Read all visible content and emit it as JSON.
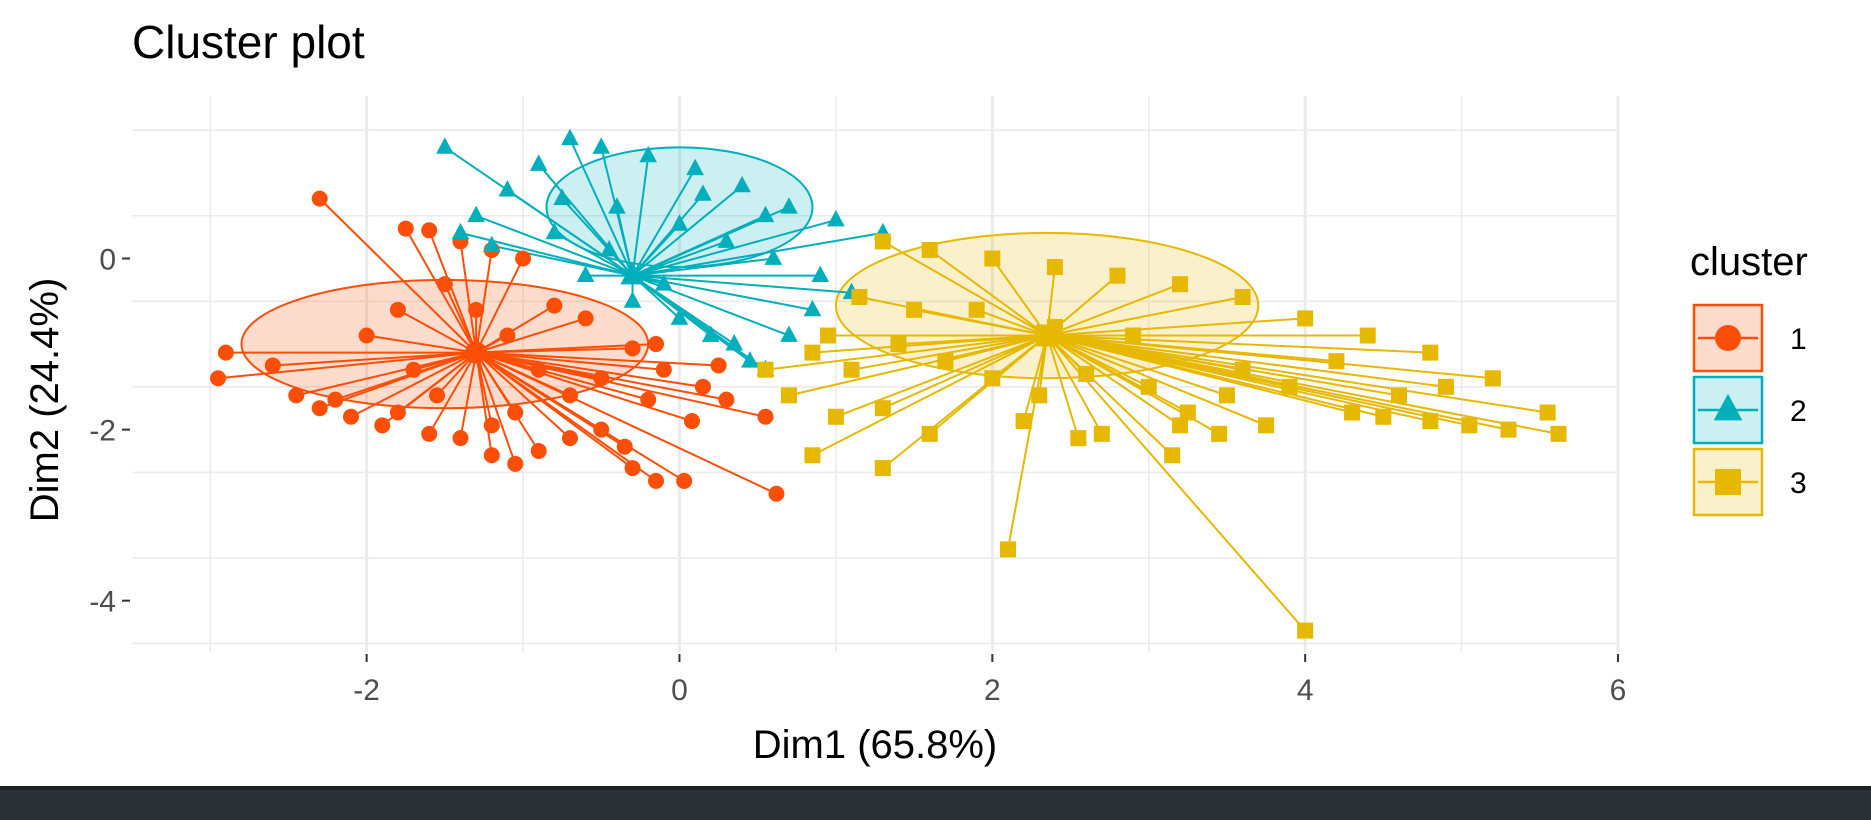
{
  "chart_data": {
    "type": "scatter",
    "title": "Cluster plot",
    "xlabel": "Dim1 (65.8%)",
    "ylabel": "Dim2 (24.4%)",
    "xlim": [
      -3.5,
      6.0
    ],
    "ylim": [
      -4.6,
      1.9
    ],
    "x_ticks": [
      -2,
      0,
      2,
      4,
      6
    ],
    "y_ticks": [
      -4,
      -2,
      0
    ],
    "grid": true,
    "legend": {
      "title": "cluster",
      "position": "right"
    },
    "series": [
      {
        "name": "1",
        "marker": "circle",
        "color": "#FC4E07",
        "center": [
          -1.3,
          -1.1
        ],
        "ellipse": {
          "cx": -1.5,
          "cy": -1.0,
          "rx": 1.3,
          "ry": 0.75
        },
        "points": [
          [
            -2.3,
            0.7
          ],
          [
            -1.75,
            0.35
          ],
          [
            -1.6,
            0.33
          ],
          [
            -1.4,
            0.2
          ],
          [
            -1.2,
            0.1
          ],
          [
            -1.0,
            0.0
          ],
          [
            -1.5,
            -0.3
          ],
          [
            -1.8,
            -0.6
          ],
          [
            -2.0,
            -0.9
          ],
          [
            -1.7,
            -1.3
          ],
          [
            -2.95,
            -1.4
          ],
          [
            -2.9,
            -1.1
          ],
          [
            -2.6,
            -1.25
          ],
          [
            -2.45,
            -1.6
          ],
          [
            -2.3,
            -1.75
          ],
          [
            -2.1,
            -1.85
          ],
          [
            -1.9,
            -1.95
          ],
          [
            -1.6,
            -2.05
          ],
          [
            -1.4,
            -2.1
          ],
          [
            -1.2,
            -1.95
          ],
          [
            -1.05,
            -1.8
          ],
          [
            -1.2,
            -2.3
          ],
          [
            -1.05,
            -2.4
          ],
          [
            -0.9,
            -2.25
          ],
          [
            -0.7,
            -2.1
          ],
          [
            -0.5,
            -2.0
          ],
          [
            -0.35,
            -2.2
          ],
          [
            -0.3,
            -2.45
          ],
          [
            -0.15,
            -2.6
          ],
          [
            0.03,
            -2.6
          ],
          [
            0.08,
            -1.9
          ],
          [
            0.3,
            -1.65
          ],
          [
            0.55,
            -1.85
          ],
          [
            0.62,
            -2.75
          ],
          [
            0.15,
            -1.5
          ],
          [
            -0.1,
            -1.3
          ],
          [
            -0.3,
            -1.05
          ],
          [
            -0.6,
            -0.7
          ],
          [
            -0.8,
            -0.55
          ],
          [
            -0.5,
            -1.4
          ],
          [
            -0.7,
            -1.6
          ],
          [
            -0.9,
            -1.3
          ],
          [
            -1.1,
            -0.9
          ],
          [
            0.25,
            -1.25
          ],
          [
            -0.15,
            -1.0
          ],
          [
            -0.2,
            -1.65
          ],
          [
            -1.3,
            -0.6
          ],
          [
            -1.55,
            -1.6
          ],
          [
            -1.8,
            -1.8
          ],
          [
            -2.2,
            -1.65
          ]
        ]
      },
      {
        "name": "2",
        "marker": "triangle",
        "color": "#00AFBB",
        "center": [
          -0.3,
          -0.2
        ],
        "ellipse": {
          "cx": 0.0,
          "cy": 0.6,
          "rx": 0.85,
          "ry": 0.7
        },
        "points": [
          [
            -1.5,
            1.3
          ],
          [
            -0.7,
            1.4
          ],
          [
            -0.5,
            1.3
          ],
          [
            -0.2,
            1.2
          ],
          [
            0.1,
            1.05
          ],
          [
            0.4,
            0.85
          ],
          [
            0.7,
            0.6
          ],
          [
            1.0,
            0.45
          ],
          [
            1.3,
            0.3
          ],
          [
            -0.9,
            1.1
          ],
          [
            -1.1,
            0.8
          ],
          [
            -1.3,
            0.5
          ],
          [
            -1.4,
            0.3
          ],
          [
            -1.2,
            0.15
          ],
          [
            -0.8,
            0.3
          ],
          [
            -0.4,
            0.6
          ],
          [
            0.0,
            0.4
          ],
          [
            0.3,
            0.2
          ],
          [
            0.6,
            0.0
          ],
          [
            0.9,
            -0.2
          ],
          [
            1.1,
            -0.4
          ],
          [
            -0.6,
            -0.2
          ],
          [
            -0.3,
            -0.5
          ],
          [
            0.0,
            -0.7
          ],
          [
            0.2,
            -0.9
          ],
          [
            0.35,
            -1.0
          ],
          [
            0.45,
            -1.2
          ],
          [
            0.55,
            -1.3
          ],
          [
            0.7,
            -0.9
          ],
          [
            0.85,
            -0.6
          ],
          [
            -0.1,
            -0.3
          ],
          [
            -0.45,
            0.1
          ],
          [
            0.15,
            0.75
          ],
          [
            0.55,
            0.5
          ],
          [
            -0.75,
            0.7
          ]
        ]
      },
      {
        "name": "3",
        "marker": "square",
        "color": "#E7B800",
        "center": [
          2.35,
          -0.9
        ],
        "ellipse": {
          "cx": 2.35,
          "cy": -0.55,
          "rx": 1.35,
          "ry": 0.85
        },
        "points": [
          [
            1.3,
            0.2
          ],
          [
            1.6,
            0.1
          ],
          [
            2.0,
            0.0
          ],
          [
            2.4,
            -0.1
          ],
          [
            2.8,
            -0.2
          ],
          [
            3.2,
            -0.3
          ],
          [
            3.6,
            -0.45
          ],
          [
            4.0,
            -0.7
          ],
          [
            4.4,
            -0.9
          ],
          [
            4.8,
            -1.1
          ],
          [
            5.2,
            -1.4
          ],
          [
            5.55,
            -1.8
          ],
          [
            5.62,
            -2.05
          ],
          [
            5.3,
            -2.0
          ],
          [
            5.05,
            -1.95
          ],
          [
            4.8,
            -1.9
          ],
          [
            4.5,
            -1.85
          ],
          [
            4.3,
            -1.8
          ],
          [
            4.6,
            -1.6
          ],
          [
            4.9,
            -1.5
          ],
          [
            3.75,
            -1.95
          ],
          [
            3.45,
            -2.05
          ],
          [
            3.2,
            -1.95
          ],
          [
            3.15,
            -2.3
          ],
          [
            3.25,
            -1.8
          ],
          [
            2.7,
            -2.05
          ],
          [
            2.55,
            -2.1
          ],
          [
            2.1,
            -3.4
          ],
          [
            4.0,
            -4.35
          ],
          [
            1.6,
            -2.05
          ],
          [
            1.3,
            -1.75
          ],
          [
            1.3,
            -2.45
          ],
          [
            0.85,
            -2.3
          ],
          [
            1.0,
            -1.85
          ],
          [
            0.7,
            -1.6
          ],
          [
            0.55,
            -1.3
          ],
          [
            0.85,
            -1.1
          ],
          [
            1.1,
            -1.3
          ],
          [
            1.4,
            -1.0
          ],
          [
            1.7,
            -1.2
          ],
          [
            2.0,
            -1.4
          ],
          [
            2.3,
            -1.6
          ],
          [
            2.6,
            -1.35
          ],
          [
            3.0,
            -1.5
          ],
          [
            3.5,
            -1.6
          ],
          [
            3.9,
            -1.5
          ],
          [
            4.2,
            -1.2
          ],
          [
            1.9,
            -0.6
          ],
          [
            2.4,
            -0.8
          ],
          [
            2.9,
            -0.9
          ],
          [
            1.15,
            -0.45
          ],
          [
            1.5,
            -0.6
          ],
          [
            0.95,
            -0.9
          ],
          [
            2.2,
            -1.9
          ],
          [
            3.6,
            -1.3
          ]
        ]
      }
    ]
  }
}
